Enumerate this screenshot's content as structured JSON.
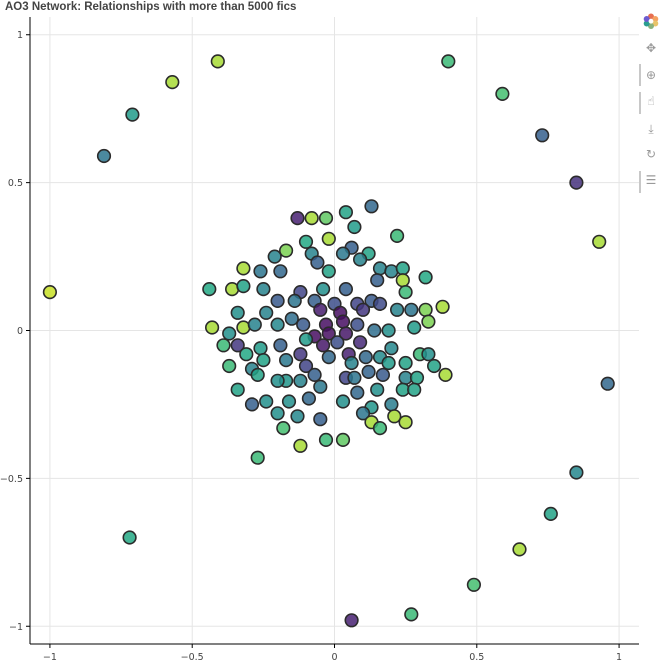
{
  "title": "AO3 Network: Relationships with more than 5000 fics",
  "toolbar": {
    "items": [
      {
        "name": "bokeh-logo-icon",
        "glyph": ""
      },
      {
        "name": "pan-tool-icon",
        "glyph": "✥"
      },
      {
        "name": "box-zoom-tool-icon",
        "glyph": "⊕"
      },
      {
        "name": "tap-tool-icon",
        "glyph": "☝"
      },
      {
        "name": "save-tool-icon",
        "glyph": "⤓"
      },
      {
        "name": "reset-tool-icon",
        "glyph": "↻"
      },
      {
        "name": "hover-tool-icon",
        "glyph": "☰"
      }
    ]
  },
  "chart_data": {
    "type": "scatter",
    "title": "AO3 Network: Relationships with more than 5000 fics",
    "xlabel": "",
    "ylabel": "",
    "xlim": [
      -1.07,
      1.07
    ],
    "ylim": [
      -1.06,
      1.06
    ],
    "grid": true,
    "x_ticks": [
      -1,
      -0.5,
      0,
      0.5,
      1
    ],
    "x_tick_labels": [
      "−1",
      "−0.5",
      "0",
      "0.5",
      "1"
    ],
    "y_ticks": [
      -1,
      -0.5,
      0,
      0.5,
      1
    ],
    "y_tick_labels": [
      "−1",
      "−0.5",
      "0",
      "0.5",
      "1"
    ],
    "colormap": "viridis",
    "points": [
      {
        "x": -1.0,
        "y": 0.13,
        "c": 0.95
      },
      {
        "x": -0.81,
        "y": 0.59,
        "c": 0.48
      },
      {
        "x": -0.71,
        "y": 0.73,
        "c": 0.68
      },
      {
        "x": -0.57,
        "y": 0.84,
        "c": 0.92
      },
      {
        "x": -0.41,
        "y": 0.91,
        "c": 0.92
      },
      {
        "x": 0.4,
        "y": 0.91,
        "c": 0.8
      },
      {
        "x": 0.59,
        "y": 0.8,
        "c": 0.82
      },
      {
        "x": 0.73,
        "y": 0.66,
        "c": 0.38
      },
      {
        "x": 0.85,
        "y": 0.5,
        "c": 0.18
      },
      {
        "x": 0.93,
        "y": 0.3,
        "c": 0.92
      },
      {
        "x": 0.96,
        "y": -0.18,
        "c": 0.42
      },
      {
        "x": 0.85,
        "y": -0.48,
        "c": 0.58
      },
      {
        "x": 0.76,
        "y": -0.62,
        "c": 0.72
      },
      {
        "x": 0.65,
        "y": -0.74,
        "c": 0.92
      },
      {
        "x": 0.49,
        "y": -0.86,
        "c": 0.82
      },
      {
        "x": 0.27,
        "y": -0.96,
        "c": 0.8
      },
      {
        "x": 0.06,
        "y": -0.98,
        "c": 0.12
      },
      {
        "x": -0.72,
        "y": -0.7,
        "c": 0.75
      },
      {
        "x": -0.27,
        "y": -0.43,
        "c": 0.8
      },
      {
        "x": -0.13,
        "y": 0.38,
        "c": 0.12
      },
      {
        "x": -0.08,
        "y": 0.38,
        "c": 0.92
      },
      {
        "x": -0.03,
        "y": 0.38,
        "c": 0.85
      },
      {
        "x": 0.04,
        "y": 0.4,
        "c": 0.72
      },
      {
        "x": 0.13,
        "y": 0.42,
        "c": 0.42
      },
      {
        "x": -0.02,
        "y": 0.31,
        "c": 0.92
      },
      {
        "x": 0.07,
        "y": 0.35,
        "c": 0.68
      },
      {
        "x": 0.22,
        "y": 0.32,
        "c": 0.8
      },
      {
        "x": -0.1,
        "y": 0.3,
        "c": 0.75
      },
      {
        "x": 0.06,
        "y": 0.28,
        "c": 0.38
      },
      {
        "x": 0.12,
        "y": 0.26,
        "c": 0.72
      },
      {
        "x": -0.17,
        "y": 0.27,
        "c": 0.88
      },
      {
        "x": -0.08,
        "y": 0.26,
        "c": 0.55
      },
      {
        "x": -0.06,
        "y": 0.23,
        "c": 0.38
      },
      {
        "x": 0.03,
        "y": 0.26,
        "c": 0.5
      },
      {
        "x": 0.09,
        "y": 0.24,
        "c": 0.55
      },
      {
        "x": -0.21,
        "y": 0.25,
        "c": 0.55
      },
      {
        "x": -0.32,
        "y": 0.21,
        "c": 0.92
      },
      {
        "x": -0.26,
        "y": 0.2,
        "c": 0.48
      },
      {
        "x": -0.19,
        "y": 0.2,
        "c": 0.42
      },
      {
        "x": -0.02,
        "y": 0.2,
        "c": 0.72
      },
      {
        "x": 0.16,
        "y": 0.21,
        "c": 0.55
      },
      {
        "x": 0.2,
        "y": 0.2,
        "c": 0.55
      },
      {
        "x": 0.24,
        "y": 0.21,
        "c": 0.72
      },
      {
        "x": 0.24,
        "y": 0.17,
        "c": 0.92
      },
      {
        "x": 0.32,
        "y": 0.18,
        "c": 0.75
      },
      {
        "x": -0.44,
        "y": 0.14,
        "c": 0.75
      },
      {
        "x": -0.36,
        "y": 0.14,
        "c": 0.92
      },
      {
        "x": -0.32,
        "y": 0.15,
        "c": 0.72
      },
      {
        "x": -0.25,
        "y": 0.14,
        "c": 0.55
      },
      {
        "x": -0.12,
        "y": 0.13,
        "c": 0.25
      },
      {
        "x": -0.04,
        "y": 0.14,
        "c": 0.62
      },
      {
        "x": 0.04,
        "y": 0.14,
        "c": 0.38
      },
      {
        "x": 0.15,
        "y": 0.17,
        "c": 0.38
      },
      {
        "x": 0.25,
        "y": 0.13,
        "c": 0.8
      },
      {
        "x": 0.38,
        "y": 0.08,
        "c": 0.92
      },
      {
        "x": -0.2,
        "y": 0.1,
        "c": 0.35
      },
      {
        "x": -0.14,
        "y": 0.1,
        "c": 0.48
      },
      {
        "x": -0.07,
        "y": 0.1,
        "c": 0.38
      },
      {
        "x": 0.0,
        "y": 0.09,
        "c": 0.3
      },
      {
        "x": 0.08,
        "y": 0.09,
        "c": 0.25
      },
      {
        "x": 0.13,
        "y": 0.1,
        "c": 0.35
      },
      {
        "x": 0.16,
        "y": 0.09,
        "c": 0.28
      },
      {
        "x": -0.34,
        "y": 0.06,
        "c": 0.62
      },
      {
        "x": -0.24,
        "y": 0.06,
        "c": 0.55
      },
      {
        "x": -0.15,
        "y": 0.04,
        "c": 0.45
      },
      {
        "x": -0.05,
        "y": 0.07,
        "c": 0.1
      },
      {
        "x": 0.02,
        "y": 0.06,
        "c": 0.05
      },
      {
        "x": 0.1,
        "y": 0.07,
        "c": 0.2
      },
      {
        "x": 0.22,
        "y": 0.07,
        "c": 0.55
      },
      {
        "x": 0.27,
        "y": 0.07,
        "c": 0.48
      },
      {
        "x": 0.32,
        "y": 0.07,
        "c": 0.88
      },
      {
        "x": -0.43,
        "y": 0.01,
        "c": 0.92
      },
      {
        "x": -0.37,
        "y": -0.01,
        "c": 0.62
      },
      {
        "x": -0.32,
        "y": 0.01,
        "c": 0.92
      },
      {
        "x": -0.28,
        "y": 0.02,
        "c": 0.55
      },
      {
        "x": -0.2,
        "y": 0.02,
        "c": 0.58
      },
      {
        "x": -0.11,
        "y": 0.02,
        "c": 0.35
      },
      {
        "x": -0.03,
        "y": 0.02,
        "c": 0.05
      },
      {
        "x": 0.03,
        "y": 0.03,
        "c": 0.05
      },
      {
        "x": 0.08,
        "y": 0.02,
        "c": 0.3
      },
      {
        "x": 0.14,
        "y": 0.0,
        "c": 0.45
      },
      {
        "x": 0.19,
        "y": 0.0,
        "c": 0.62
      },
      {
        "x": 0.28,
        "y": 0.01,
        "c": 0.68
      },
      {
        "x": 0.33,
        "y": 0.03,
        "c": 0.88
      },
      {
        "x": -0.07,
        "y": -0.02,
        "c": 0.05
      },
      {
        "x": -0.02,
        "y": -0.01,
        "c": 0.05
      },
      {
        "x": 0.04,
        "y": -0.01,
        "c": 0.08
      },
      {
        "x": -0.34,
        "y": -0.05,
        "c": 0.2
      },
      {
        "x": -0.26,
        "y": -0.06,
        "c": 0.68
      },
      {
        "x": -0.19,
        "y": -0.05,
        "c": 0.38
      },
      {
        "x": -0.1,
        "y": -0.03,
        "c": 0.68
      },
      {
        "x": -0.04,
        "y": -0.05,
        "c": 0.08
      },
      {
        "x": 0.01,
        "y": -0.04,
        "c": 0.3
      },
      {
        "x": 0.09,
        "y": -0.04,
        "c": 0.15
      },
      {
        "x": 0.2,
        "y": -0.06,
        "c": 0.58
      },
      {
        "x": -0.39,
        "y": -0.05,
        "c": 0.8
      },
      {
        "x": -0.31,
        "y": -0.08,
        "c": 0.75
      },
      {
        "x": -0.12,
        "y": -0.08,
        "c": 0.2
      },
      {
        "x": 0.05,
        "y": -0.08,
        "c": 0.12
      },
      {
        "x": 0.11,
        "y": -0.09,
        "c": 0.42
      },
      {
        "x": 0.16,
        "y": -0.09,
        "c": 0.6
      },
      {
        "x": 0.3,
        "y": -0.08,
        "c": 0.8
      },
      {
        "x": 0.33,
        "y": -0.08,
        "c": 0.62
      },
      {
        "x": -0.25,
        "y": -0.1,
        "c": 0.72
      },
      {
        "x": -0.17,
        "y": -0.1,
        "c": 0.5
      },
      {
        "x": -0.02,
        "y": -0.09,
        "c": 0.42
      },
      {
        "x": 0.06,
        "y": -0.11,
        "c": 0.55
      },
      {
        "x": 0.19,
        "y": -0.11,
        "c": 0.68
      },
      {
        "x": 0.25,
        "y": -0.11,
        "c": 0.72
      },
      {
        "x": 0.35,
        "y": -0.12,
        "c": 0.72
      },
      {
        "x": -0.37,
        "y": -0.12,
        "c": 0.8
      },
      {
        "x": -0.29,
        "y": -0.13,
        "c": 0.55
      },
      {
        "x": -0.1,
        "y": -0.12,
        "c": 0.25
      },
      {
        "x": 0.12,
        "y": -0.14,
        "c": 0.4
      },
      {
        "x": -0.27,
        "y": -0.15,
        "c": 0.72
      },
      {
        "x": -0.17,
        "y": -0.17,
        "c": 0.65
      },
      {
        "x": -0.12,
        "y": -0.17,
        "c": 0.55
      },
      {
        "x": -0.07,
        "y": -0.15,
        "c": 0.38
      },
      {
        "x": 0.04,
        "y": -0.16,
        "c": 0.25
      },
      {
        "x": 0.07,
        "y": -0.16,
        "c": 0.48
      },
      {
        "x": 0.17,
        "y": -0.15,
        "c": 0.35
      },
      {
        "x": 0.25,
        "y": -0.16,
        "c": 0.55
      },
      {
        "x": 0.29,
        "y": -0.16,
        "c": 0.72
      },
      {
        "x": 0.39,
        "y": -0.15,
        "c": 0.92
      },
      {
        "x": -0.34,
        "y": -0.2,
        "c": 0.72
      },
      {
        "x": -0.2,
        "y": -0.17,
        "c": 0.62
      },
      {
        "x": -0.05,
        "y": -0.19,
        "c": 0.5
      },
      {
        "x": 0.08,
        "y": -0.21,
        "c": 0.42
      },
      {
        "x": 0.15,
        "y": -0.2,
        "c": 0.62
      },
      {
        "x": 0.24,
        "y": -0.2,
        "c": 0.72
      },
      {
        "x": 0.28,
        "y": -0.2,
        "c": 0.72
      },
      {
        "x": -0.29,
        "y": -0.25,
        "c": 0.38
      },
      {
        "x": -0.24,
        "y": -0.24,
        "c": 0.62
      },
      {
        "x": -0.16,
        "y": -0.24,
        "c": 0.62
      },
      {
        "x": -0.09,
        "y": -0.23,
        "c": 0.42
      },
      {
        "x": 0.03,
        "y": -0.24,
        "c": 0.62
      },
      {
        "x": 0.13,
        "y": -0.26,
        "c": 0.65
      },
      {
        "x": 0.2,
        "y": -0.25,
        "c": 0.52
      },
      {
        "x": -0.2,
        "y": -0.28,
        "c": 0.62
      },
      {
        "x": -0.13,
        "y": -0.29,
        "c": 0.58
      },
      {
        "x": -0.05,
        "y": -0.3,
        "c": 0.38
      },
      {
        "x": 0.1,
        "y": -0.28,
        "c": 0.48
      },
      {
        "x": 0.21,
        "y": -0.29,
        "c": 0.92
      },
      {
        "x": -0.18,
        "y": -0.33,
        "c": 0.82
      },
      {
        "x": 0.13,
        "y": -0.31,
        "c": 0.92
      },
      {
        "x": 0.25,
        "y": -0.31,
        "c": 0.92
      },
      {
        "x": 0.16,
        "y": -0.33,
        "c": 0.8
      },
      {
        "x": -0.03,
        "y": -0.37,
        "c": 0.8
      },
      {
        "x": 0.03,
        "y": -0.37,
        "c": 0.85
      },
      {
        "x": -0.12,
        "y": -0.39,
        "c": 0.92
      }
    ]
  }
}
